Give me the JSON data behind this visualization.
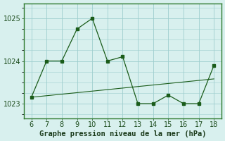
{
  "x": [
    6,
    7,
    8,
    9,
    10,
    11,
    12,
    13,
    14,
    15,
    16,
    17,
    18
  ],
  "y": [
    1023.15,
    1024.0,
    1024.0,
    1024.75,
    1025.0,
    1024.0,
    1024.1,
    1023.0,
    1023.0,
    1023.2,
    1023.0,
    1023.0,
    1023.9
  ],
  "trend_x": [
    6,
    18
  ],
  "trend_y": [
    1023.15,
    1023.58
  ],
  "line_color": "#1a5c1a",
  "bg_color": "#d8f0ee",
  "grid_color": "#9ecece",
  "border_color": "#2d7a2d",
  "xlabel": "Graphe pression niveau de la mer (hPa)",
  "ylim": [
    1022.65,
    1025.35
  ],
  "yticks": [
    1023,
    1024,
    1025
  ],
  "xticks": [
    6,
    7,
    8,
    9,
    10,
    11,
    12,
    13,
    14,
    15,
    16,
    17,
    18
  ],
  "axis_fontsize": 7,
  "xlabel_fontsize": 7.5
}
